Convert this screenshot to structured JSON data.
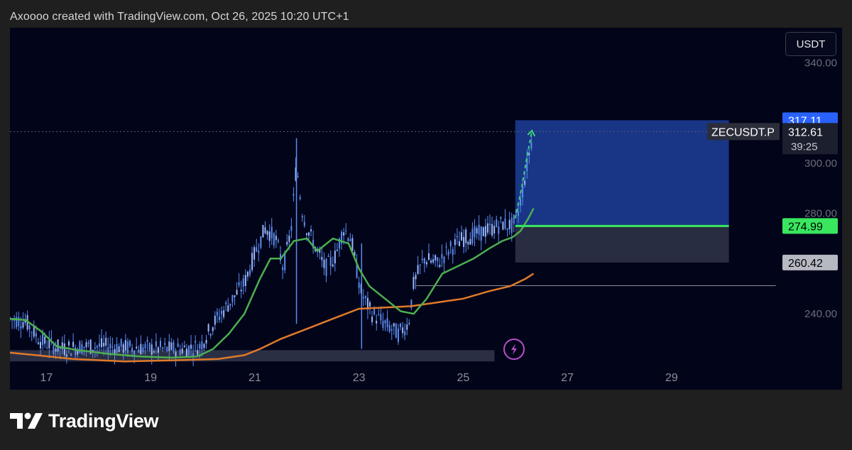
{
  "header": {
    "attribution": "Axoooo created with TradingView.com, Oct 26, 2025 10:20 UTC+1"
  },
  "toolbar": {
    "currency_label": "USDT"
  },
  "footer": {
    "brand": "TradingView"
  },
  "colors": {
    "background": "#020419",
    "candle": "#5b8cf0",
    "ema_fast": "#4caf50",
    "ema_slow": "#e07a2a",
    "target_zone": "#1a3a8f",
    "stop_zone": "#2a2f45",
    "entry_line": "#39e75f",
    "target_badge": "#2962ff",
    "entry_badge": "#39e75f",
    "stop_badge": "#b7b9c2",
    "alert_icon": "#b84fc9"
  },
  "chart_data": {
    "type": "line",
    "title": "",
    "symbol": "ZECUSDT.P",
    "x_ticks": [
      "17",
      "19",
      "21",
      "23",
      "25",
      "27",
      "29"
    ],
    "x_range": [
      16.3,
      31.1
    ],
    "y_ticks": [
      "340.00",
      "300.00",
      "280.00",
      "240.00"
    ],
    "ylim": [
      220.5,
      354
    ],
    "grid": false,
    "price_series": {
      "name": "",
      "x": [
        16.3,
        16.6,
        16.9,
        17.3,
        17.7,
        18.2,
        18.7,
        19.2,
        19.6,
        19.95,
        20.2,
        20.5,
        20.8,
        21.0,
        21.2,
        21.4,
        21.55,
        21.7,
        21.8,
        21.9,
        22.0,
        22.2,
        22.35,
        22.55,
        22.7,
        22.85,
        22.95,
        23.05,
        23.25,
        23.5,
        23.75,
        23.95,
        24.05,
        24.25,
        24.5,
        24.75,
        25.0,
        25.3,
        25.55,
        25.75,
        25.95,
        26.05,
        26.15,
        26.25,
        26.35
      ],
      "values": [
        238,
        237,
        229,
        226,
        227,
        227,
        226.5,
        226,
        226,
        227,
        236,
        244,
        252,
        264,
        274,
        270,
        258,
        274,
        300,
        282,
        274,
        265,
        258,
        263,
        274,
        270,
        258,
        248,
        240,
        236,
        232,
        236,
        252,
        262,
        260,
        266,
        270,
        272,
        274,
        276,
        275,
        280,
        290,
        302,
        313
      ]
    },
    "ema_fast": {
      "name": "",
      "x": [
        16.3,
        16.6,
        16.9,
        17.2,
        17.6,
        18.2,
        18.8,
        19.4,
        19.9,
        20.2,
        20.5,
        20.8,
        21.1,
        21.3,
        21.5,
        21.75,
        22.0,
        22.2,
        22.5,
        22.8,
        23.0,
        23.2,
        23.5,
        23.8,
        24.05,
        24.3,
        24.6,
        24.9,
        25.2,
        25.5,
        25.75,
        25.95,
        26.1,
        26.25,
        26.35
      ],
      "values": [
        238,
        237.5,
        233,
        227,
        225.5,
        224,
        223,
        222.5,
        223,
        226,
        232,
        240,
        254,
        262,
        262,
        269,
        270,
        265,
        270,
        268,
        258,
        251,
        246,
        241,
        240,
        246,
        256,
        259,
        262,
        266,
        269,
        270.5,
        273,
        278,
        282
      ]
    },
    "ema_slow": {
      "name": "",
      "x": [
        16.3,
        16.8,
        17.5,
        18.5,
        19.5,
        20.3,
        20.8,
        21.1,
        21.5,
        22.0,
        22.5,
        23.0,
        23.5,
        24.0,
        24.5,
        25.0,
        25.5,
        25.9,
        26.2,
        26.35
      ],
      "values": [
        224.5,
        223.5,
        222,
        221,
        221.5,
        222,
        223.5,
        226,
        230,
        234,
        238,
        242,
        242.5,
        243,
        244.5,
        246,
        249,
        251,
        254,
        256
      ]
    },
    "projection": {
      "x": [
        26.0,
        26.12,
        26.22,
        26.32
      ],
      "values": [
        278,
        290,
        302,
        313
      ]
    },
    "position": {
      "target_price": "317.11",
      "current_price": "312.61",
      "countdown": "39:25",
      "entry_price": "274.99",
      "stop_price": "260.42",
      "target": 317.11,
      "entry": 274.99,
      "stop": 260.42,
      "x_start": 26.0,
      "x_end": 30.1
    },
    "support_line": {
      "value": 251.2,
      "x_start": 24.1,
      "x_end": 31.0
    },
    "base_zone": {
      "low": 221,
      "high": 225.5,
      "x_start": 16.3,
      "x_end": 25.6
    }
  }
}
